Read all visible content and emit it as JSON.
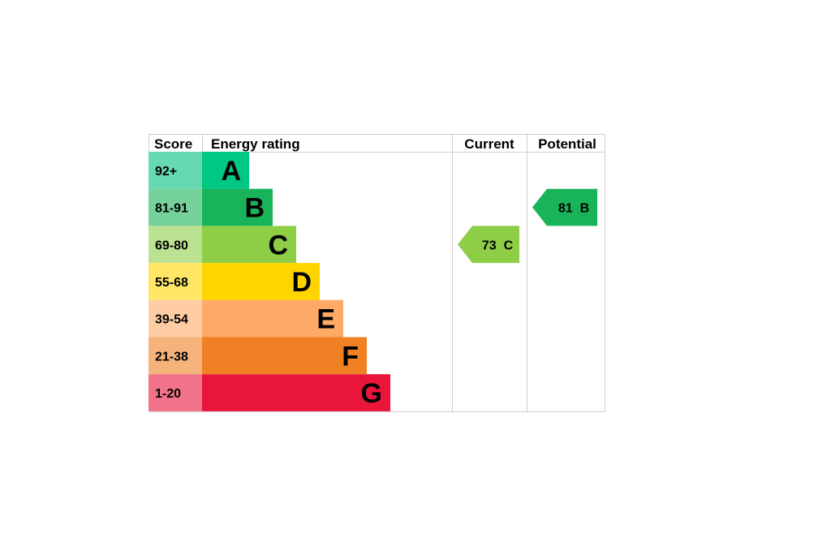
{
  "chart_data": {
    "type": "bar",
    "headers": {
      "score": "Score",
      "rating": "Energy rating",
      "current": "Current",
      "potential": "Potential"
    },
    "bands": [
      {
        "score": "92+",
        "letter": "A",
        "color": "#00c781",
        "score_bg": "#66d9b3",
        "fraction": 0.2
      },
      {
        "score": "81-91",
        "letter": "B",
        "color": "#19b459",
        "score_bg": "#75d29b",
        "fraction": 0.3
      },
      {
        "score": "69-80",
        "letter": "C",
        "color": "#8dce46",
        "score_bg": "#bbe290",
        "fraction": 0.4
      },
      {
        "score": "55-68",
        "letter": "D",
        "color": "#ffd500",
        "score_bg": "#ffe666",
        "fraction": 0.5
      },
      {
        "score": "39-54",
        "letter": "E",
        "color": "#fcaa65",
        "score_bg": "#fdcca3",
        "fraction": 0.6
      },
      {
        "score": "21-38",
        "letter": "F",
        "color": "#ef8023",
        "score_bg": "#f5b37b",
        "fraction": 0.7
      },
      {
        "score": "1-20",
        "letter": "G",
        "color": "#e9153b",
        "score_bg": "#f27389",
        "fraction": 0.8
      }
    ],
    "current": {
      "value": 73,
      "letter": "C",
      "label": "73  C",
      "color": "#8dce46"
    },
    "potential": {
      "value": 81,
      "letter": "B",
      "label": "81  B",
      "color": "#19b459"
    }
  }
}
